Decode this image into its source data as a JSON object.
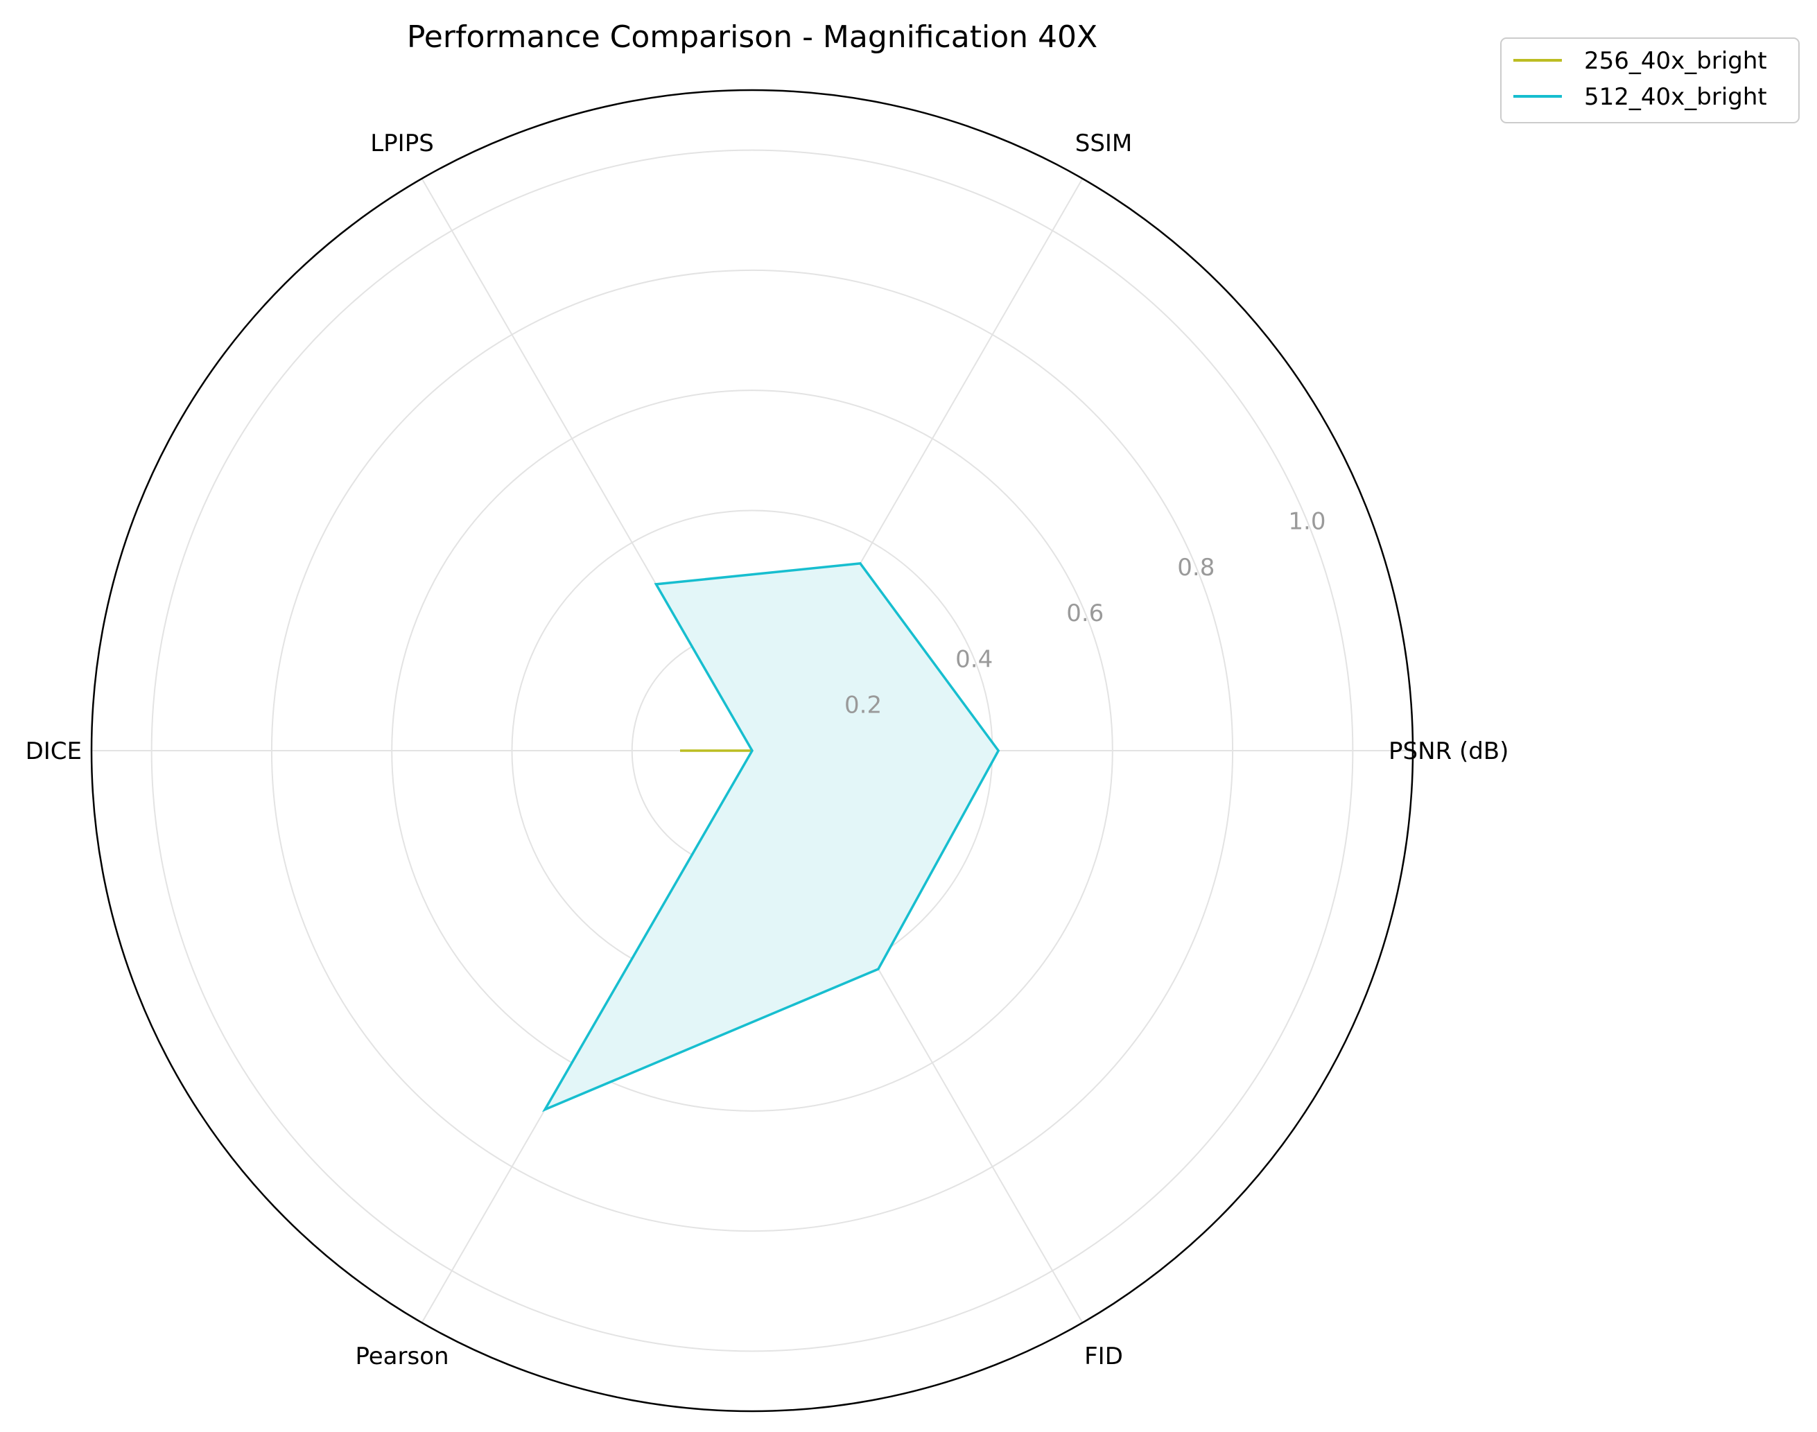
{
  "chart_data": {
    "type": "radar",
    "title": "Performance Comparison - Magnification 40X",
    "axes": [
      "PSNR (dB)",
      "SSIM",
      "LPIPS",
      "DICE",
      "Pearson",
      "FID"
    ],
    "r_ticks": [
      "0.2",
      "0.4",
      "0.6",
      "0.8",
      "1.0"
    ],
    "r_tick_values": [
      0.2,
      0.4,
      0.6,
      0.8,
      1.0
    ],
    "rlim": [
      0,
      1.1
    ],
    "grid": true,
    "legend_position": "top-right",
    "series": [
      {
        "name": "256_40x_bright",
        "color": "#bcbd22",
        "values": [
          0.0,
          0.0,
          0.0,
          0.12,
          0.0,
          0.0
        ],
        "filled": false
      },
      {
        "name": "512_40x_bright",
        "color": "#17becf",
        "fill_color": "#e3f6f8",
        "values": [
          0.41,
          0.36,
          0.32,
          0.0,
          0.69,
          0.42
        ],
        "filled": true
      }
    ]
  }
}
